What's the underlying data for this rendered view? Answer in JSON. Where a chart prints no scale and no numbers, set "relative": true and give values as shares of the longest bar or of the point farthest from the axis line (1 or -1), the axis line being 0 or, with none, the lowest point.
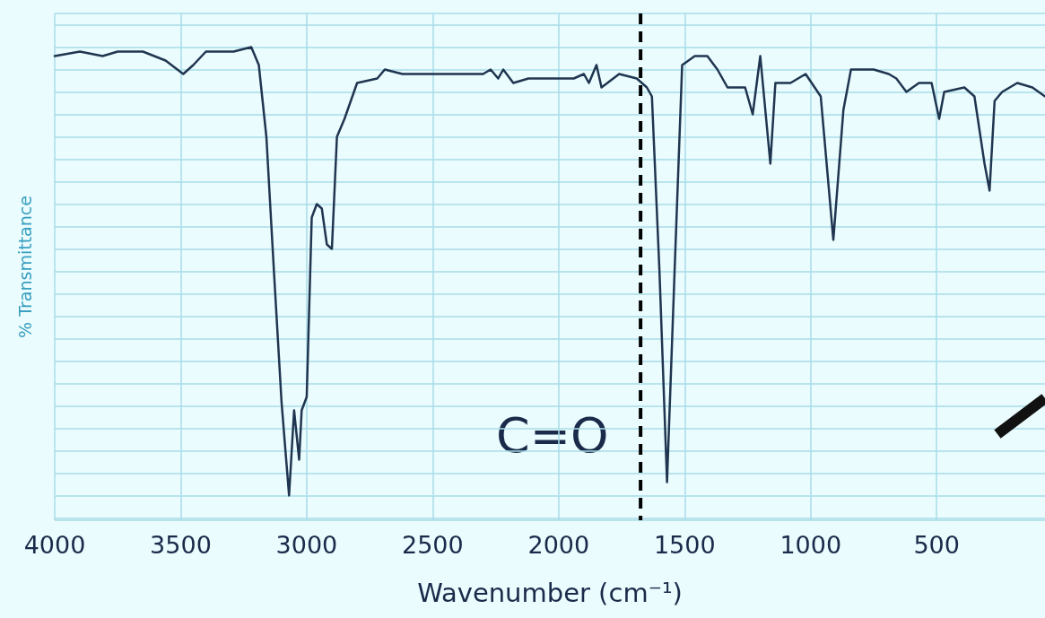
{
  "chart_data": {
    "type": "line",
    "xlabel": "Wavenumber (cm⁻¹)",
    "ylabel": "% Transmittance",
    "relative": true,
    "grid": true,
    "marker": "none",
    "line_style": "solid",
    "xlim": [
      4000,
      70
    ],
    "xticks": [
      4000,
      3500,
      3000,
      2500,
      2000,
      1500,
      1000,
      500
    ],
    "series": [
      {
        "color": "#1f3550",
        "x": [
          4000,
          3900,
          3810,
          3750,
          3650,
          3560,
          3490,
          3450,
          3400,
          3290,
          3220,
          3190,
          3160,
          3130,
          3100,
          3070,
          3050,
          3030,
          3020,
          3000,
          2980,
          2960,
          2940,
          2920,
          2900,
          2880,
          2850,
          2800,
          2720,
          2690,
          2620,
          2440,
          2300,
          2270,
          2240,
          2220,
          2180,
          2120,
          2010,
          1940,
          1900,
          1880,
          1850,
          1830,
          1760,
          1690,
          1650,
          1630,
          1600,
          1570,
          1540,
          1510,
          1460,
          1410,
          1370,
          1330,
          1260,
          1230,
          1200,
          1160,
          1140,
          1080,
          1020,
          960,
          910,
          870,
          840,
          750,
          690,
          660,
          620,
          570,
          520,
          490,
          470,
          390,
          350,
          310,
          290,
          270,
          240,
          180,
          120,
          70
        ],
        "values": [
          0.98,
          0.99,
          0.98,
          0.99,
          0.99,
          0.97,
          0.94,
          0.96,
          0.99,
          0.99,
          1.0,
          0.96,
          0.8,
          0.5,
          0.21,
          0,
          0.19,
          0.08,
          0.19,
          0.22,
          0.62,
          0.65,
          0.64,
          0.56,
          0.55,
          0.8,
          0.84,
          0.92,
          0.93,
          0.95,
          0.94,
          0.94,
          0.94,
          0.95,
          0.93,
          0.95,
          0.92,
          0.93,
          0.93,
          0.93,
          0.94,
          0.92,
          0.96,
          0.91,
          0.94,
          0.93,
          0.91,
          0.89,
          0.5,
          0.03,
          0.5,
          0.96,
          0.98,
          0.98,
          0.95,
          0.91,
          0.91,
          0.85,
          0.98,
          0.74,
          0.92,
          0.92,
          0.94,
          0.89,
          0.57,
          0.86,
          0.95,
          0.95,
          0.94,
          0.93,
          0.9,
          0.92,
          0.92,
          0.84,
          0.9,
          0.91,
          0.89,
          0.74,
          0.68,
          0.88,
          0.9,
          0.92,
          0.91,
          0.89
        ]
      }
    ],
    "ref_lines": [
      {
        "axis": "x",
        "value": 1675,
        "label": null,
        "color": "#000000",
        "line_style": "dashed"
      }
    ],
    "annotations": [
      "C=O"
    ]
  }
}
